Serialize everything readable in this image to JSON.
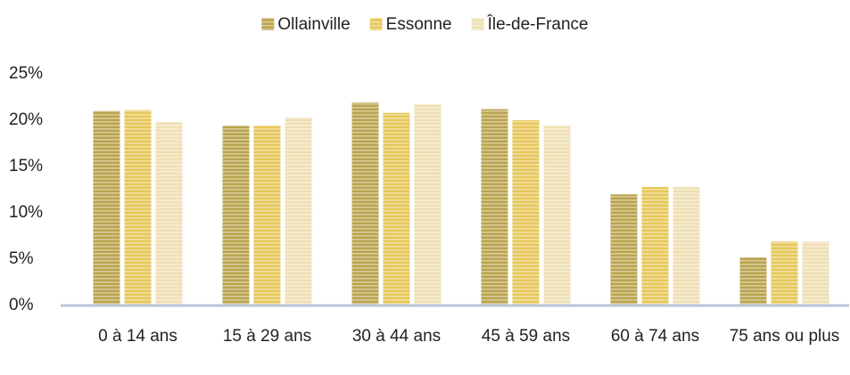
{
  "chart_data": {
    "type": "bar",
    "categories": [
      "0 à 14 ans",
      "15 à 29 ans",
      "30 à 44 ans",
      "45 à 59 ans",
      "60 à 74 ans",
      "75 ans ou plus"
    ],
    "series": [
      {
        "name": "Ollainville",
        "color": "#b9a44f",
        "values": [
          21.0,
          19.4,
          21.9,
          21.2,
          12.0,
          5.2
        ]
      },
      {
        "name": "Essonne",
        "color": "#e6c75a",
        "values": [
          21.1,
          19.4,
          20.8,
          20.0,
          12.8,
          6.9
        ]
      },
      {
        "name": "Île-de-France",
        "color": "#efdfb3",
        "values": [
          19.8,
          20.3,
          21.7,
          19.4,
          12.8,
          6.9
        ]
      }
    ],
    "ylim": [
      0,
      25
    ],
    "yticks": [
      {
        "value": 0,
        "label": "0%"
      },
      {
        "value": 5,
        "label": "5%"
      },
      {
        "value": 10,
        "label": "10%"
      },
      {
        "value": 15,
        "label": "15%"
      },
      {
        "value": 20,
        "label": "20%"
      },
      {
        "value": 25,
        "label": "25%"
      }
    ],
    "grid": false,
    "legend": "top"
  }
}
